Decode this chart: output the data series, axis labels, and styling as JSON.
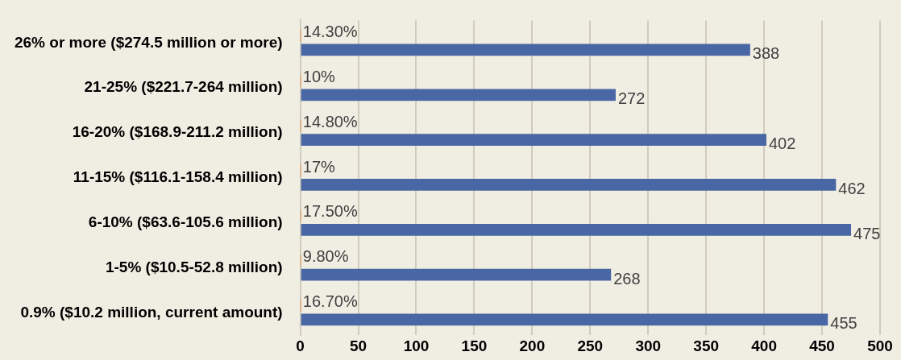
{
  "chart_data": {
    "type": "bar",
    "orientation": "horizontal",
    "categories": [
      "26% or more ($274.5 million or more)",
      "21-25% ($221.7-264 million)",
      "16-20% ($168.9-211.2 million)",
      "11-15% ($116.1-158.4 million)",
      "6-10% ($63.6-105.6 million)",
      "1-5% ($10.5-52.8 million)",
      "0.9% ($10.2 million, current amount)"
    ],
    "series": [
      {
        "color": "#ed7d31",
        "values": [
          0.143,
          0.1,
          0.148,
          0.17,
          0.175,
          0.098,
          0.167
        ],
        "value_labels": [
          "14.30%",
          "10%",
          "14.80%",
          "17%",
          "17.50%",
          "9.80%",
          "16.70%"
        ]
      },
      {
        "color": "#4a67a5",
        "values": [
          388,
          272,
          402,
          462,
          475,
          268,
          455
        ],
        "value_labels": [
          "388",
          "272",
          "402",
          "462",
          "475",
          "268",
          "455"
        ]
      }
    ],
    "xlim": [
      0,
      500
    ],
    "xticks": [
      0,
      50,
      100,
      150,
      200,
      250,
      300,
      350,
      400,
      450,
      500
    ],
    "grid": "x",
    "legend": false
  }
}
